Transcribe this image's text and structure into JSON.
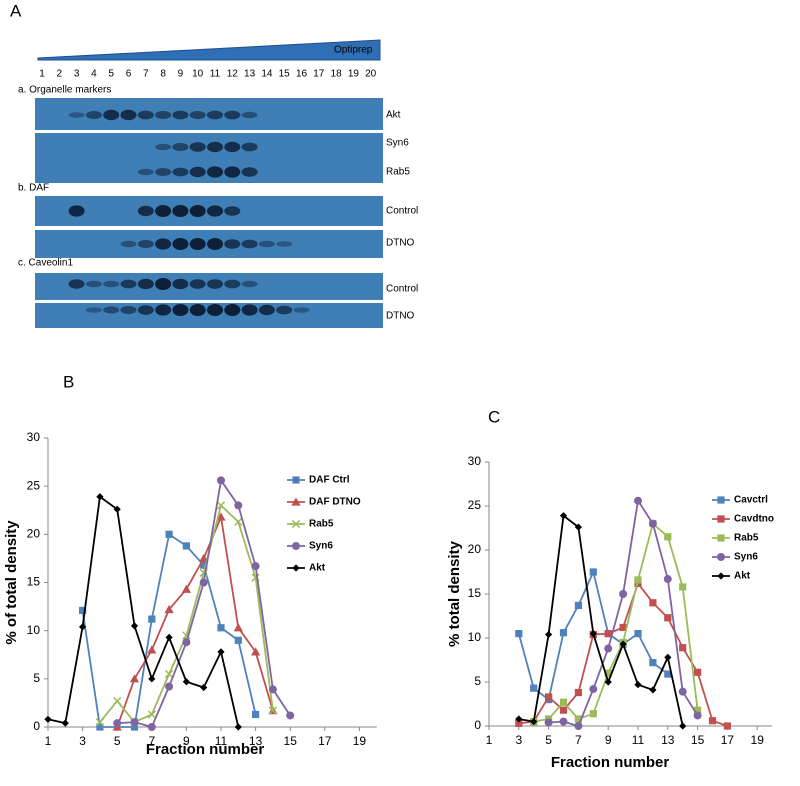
{
  "panel_a": {
    "panel_label": "A",
    "gradient_label": "Optiprep",
    "fraction_labels": [
      1,
      2,
      3,
      4,
      5,
      6,
      7,
      8,
      9,
      10,
      11,
      12,
      13,
      14,
      15,
      16,
      17,
      18,
      19,
      20
    ],
    "sections": [
      {
        "title": "a. Organelle markers",
        "lanes": [
          "Akt",
          "Syn6",
          "Rab5"
        ]
      },
      {
        "title": "b. DAF",
        "lanes": [
          "Control",
          "DTNO"
        ]
      },
      {
        "title": "c. Caveolin1",
        "lanes": [
          "Control",
          "DTNO"
        ]
      }
    ]
  },
  "chart_data": [
    {
      "type": "line",
      "panel_label": "B",
      "xlabel": "Fraction number",
      "ylabel": "% of total density",
      "xlim": [
        1,
        20
      ],
      "xticks": [
        1,
        3,
        5,
        7,
        9,
        11,
        13,
        15,
        17,
        19
      ],
      "ylim": [
        0,
        30
      ],
      "yticks": [
        0,
        5,
        10,
        15,
        20,
        25,
        30
      ],
      "series": [
        {
          "name": "DAF Ctrl",
          "color": "#4f81bd",
          "marker": "square",
          "x": [
            3,
            4,
            6,
            7,
            8,
            9,
            10,
            11,
            12,
            13
          ],
          "values": [
            12.1,
            0,
            0,
            11.2,
            20,
            18.8,
            16.8,
            10.3,
            9,
            1.3
          ]
        },
        {
          "name": "DAF DTNO",
          "color": "#c0504d",
          "marker": "triangle",
          "x": [
            5,
            6,
            7,
            8,
            9,
            10,
            11,
            12,
            13,
            14
          ],
          "values": [
            0,
            5,
            8,
            12.2,
            14.3,
            17.5,
            21.8,
            10.3,
            7.8,
            1.7
          ]
        },
        {
          "name": "Rab5",
          "color": "#9bbb59",
          "marker": "x",
          "x": [
            4,
            5,
            6,
            7,
            8,
            9,
            10,
            11,
            12,
            13,
            14
          ],
          "values": [
            0.5,
            2.7,
            0.5,
            1.3,
            5.5,
            9.5,
            16,
            23,
            21.3,
            15.5,
            1.7
          ]
        },
        {
          "name": "Syn6",
          "color": "#8064a2",
          "marker": "circle",
          "x": [
            5,
            6,
            7,
            8,
            9,
            10,
            11,
            12,
            13,
            14,
            15
          ],
          "values": [
            0.4,
            0.5,
            0,
            4.2,
            8.8,
            15,
            25.6,
            23,
            16.7,
            3.9,
            1.2
          ]
        },
        {
          "name": "Akt",
          "color": "#000000",
          "marker": "diamond",
          "x": [
            1,
            2,
            3,
            4,
            5,
            6,
            7,
            8,
            9,
            10,
            11,
            12
          ],
          "values": [
            0.8,
            0.4,
            10.4,
            23.9,
            22.6,
            10.5,
            5,
            9.3,
            4.7,
            4.1,
            7.8,
            0
          ]
        }
      ]
    },
    {
      "type": "line",
      "panel_label": "C",
      "xlabel": "Fraction number",
      "ylabel": "% total density",
      "xlim": [
        1,
        20
      ],
      "xticks": [
        1,
        3,
        5,
        7,
        9,
        11,
        13,
        15,
        17,
        19
      ],
      "ylim": [
        0,
        30
      ],
      "yticks": [
        0,
        5,
        10,
        15,
        20,
        25,
        30
      ],
      "series": [
        {
          "name": "Cavctrl",
          "color": "#4f81bd",
          "marker": "square",
          "x": [
            3,
            4,
            5,
            6,
            7,
            8,
            9,
            10,
            11,
            12,
            13
          ],
          "values": [
            10.5,
            4.3,
            3,
            10.6,
            13.7,
            17.5,
            10.5,
            9.3,
            10.5,
            7.2,
            5.9
          ]
        },
        {
          "name": "Cavdtno",
          "color": "#c0504d",
          "marker": "square",
          "x": [
            3,
            4,
            5,
            6,
            7,
            8,
            9,
            10,
            11,
            12,
            13,
            14,
            15,
            16,
            17
          ],
          "values": [
            0.3,
            0.5,
            3.3,
            1.8,
            3.8,
            10.4,
            10.5,
            11.2,
            16.2,
            14,
            12.3,
            8.9,
            6.1,
            0.6,
            0
          ]
        },
        {
          "name": "Rab5",
          "color": "#9bbb59",
          "marker": "square",
          "x": [
            4,
            5,
            6,
            7,
            8,
            9,
            10,
            11,
            12,
            13,
            14,
            15
          ],
          "values": [
            0.5,
            0.8,
            2.7,
            0.8,
            1.4,
            6,
            9.5,
            16.6,
            23,
            21.5,
            15.8,
            1.8
          ]
        },
        {
          "name": "Syn6",
          "color": "#8064a2",
          "marker": "circle",
          "x": [
            5,
            6,
            7,
            8,
            9,
            10,
            11,
            12,
            13,
            14,
            15
          ],
          "values": [
            0.4,
            0.5,
            0,
            4.2,
            8.8,
            15,
            25.6,
            23,
            16.7,
            3.9,
            1.2
          ]
        },
        {
          "name": "Akt",
          "color": "#000000",
          "marker": "diamond",
          "x": [
            3,
            4,
            5,
            6,
            7,
            8,
            9,
            10,
            11,
            12,
            13,
            14
          ],
          "values": [
            0.8,
            0.5,
            10.4,
            23.9,
            22.6,
            10.5,
            5,
            9.3,
            4.7,
            4.1,
            7.8,
            0
          ]
        }
      ]
    }
  ]
}
